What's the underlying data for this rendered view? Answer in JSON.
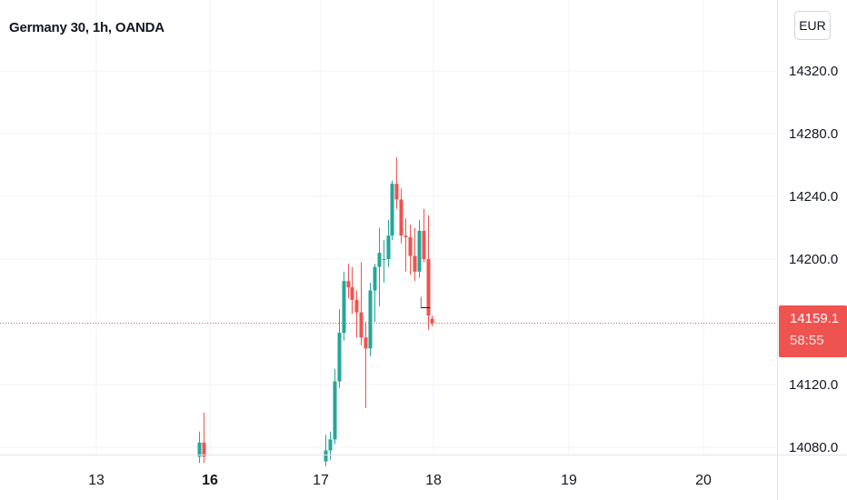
{
  "header": {
    "title": "Germany 30, 1h, OANDA",
    "currency": "EUR"
  },
  "last_price": {
    "value": "14159.1",
    "countdown": "58:55"
  },
  "colors": {
    "up": "#26a69a",
    "down": "#ef5350",
    "grid": "#f0f3fa",
    "last_line": "#ef5350"
  },
  "chart_data": {
    "type": "candlestick",
    "title": "Germany 30, 1h, OANDA",
    "y_ticks": [
      "14080.0",
      "14120.0",
      "14200.0",
      "14240.0",
      "14280.0",
      "14320.0"
    ],
    "x_ticks": [
      {
        "label": "13",
        "bold": false
      },
      {
        "label": "16",
        "bold": true
      },
      {
        "label": "17",
        "bold": false
      },
      {
        "label": "18",
        "bold": false
      },
      {
        "label": "19",
        "bold": false
      },
      {
        "label": "20",
        "bold": false
      }
    ],
    "ylim": [
      14072,
      14336
    ],
    "last_price": 14159.1,
    "candles": [
      {
        "t": 15.9,
        "o": 14074,
        "h": 14090,
        "l": 14070,
        "c": 14083
      },
      {
        "t": 15.94,
        "o": 14083,
        "h": 14102,
        "l": 14070,
        "c": 14074
      },
      {
        "t": 17.04,
        "o": 14071,
        "h": 14088,
        "l": 14068,
        "c": 14078
      },
      {
        "t": 17.08,
        "o": 14078,
        "h": 14090,
        "l": 14072,
        "c": 14085
      },
      {
        "t": 17.12,
        "o": 14085,
        "h": 14130,
        "l": 14082,
        "c": 14122
      },
      {
        "t": 17.16,
        "o": 14122,
        "h": 14168,
        "l": 14118,
        "c": 14153
      },
      {
        "t": 17.2,
        "o": 14153,
        "h": 14192,
        "l": 14148,
        "c": 14186
      },
      {
        "t": 17.24,
        "o": 14186,
        "h": 14197,
        "l": 14175,
        "c": 14182
      },
      {
        "t": 17.28,
        "o": 14182,
        "h": 14195,
        "l": 14165,
        "c": 14174
      },
      {
        "t": 17.32,
        "o": 14174,
        "h": 14180,
        "l": 14150,
        "c": 14166
      },
      {
        "t": 17.36,
        "o": 14166,
        "h": 14198,
        "l": 14145,
        "c": 14150
      },
      {
        "t": 17.4,
        "o": 14150,
        "h": 14160,
        "l": 14105,
        "c": 14143
      },
      {
        "t": 17.44,
        "o": 14143,
        "h": 14185,
        "l": 14138,
        "c": 14180
      },
      {
        "t": 17.48,
        "o": 14180,
        "h": 14197,
        "l": 14160,
        "c": 14195
      },
      {
        "t": 17.52,
        "o": 14195,
        "h": 14220,
        "l": 14170,
        "c": 14204
      },
      {
        "t": 17.56,
        "o": 14200,
        "h": 14212,
        "l": 14185,
        "c": 14200
      },
      {
        "t": 17.6,
        "o": 14200,
        "h": 14225,
        "l": 14195,
        "c": 14215
      },
      {
        "t": 17.64,
        "o": 14215,
        "h": 14250,
        "l": 14212,
        "c": 14248
      },
      {
        "t": 17.68,
        "o": 14248,
        "h": 14265,
        "l": 14232,
        "c": 14238
      },
      {
        "t": 17.72,
        "o": 14238,
        "h": 14245,
        "l": 14210,
        "c": 14215
      },
      {
        "t": 17.76,
        "o": 14215,
        "h": 14226,
        "l": 14192,
        "c": 14214
      },
      {
        "t": 17.8,
        "o": 14214,
        "h": 14222,
        "l": 14190,
        "c": 14202
      },
      {
        "t": 17.84,
        "o": 14202,
        "h": 14220,
        "l": 14186,
        "c": 14192
      },
      {
        "t": 17.88,
        "o": 14192,
        "h": 14225,
        "l": 14188,
        "c": 14218
      },
      {
        "t": 17.92,
        "o": 14218,
        "h": 14232,
        "l": 14198,
        "c": 14200
      },
      {
        "t": 17.96,
        "o": 14200,
        "h": 14228,
        "l": 14155,
        "c": 14164
      },
      {
        "t": 18.0,
        "o": 14162,
        "h": 14164,
        "l": 14157,
        "c": 14159.1
      }
    ]
  }
}
